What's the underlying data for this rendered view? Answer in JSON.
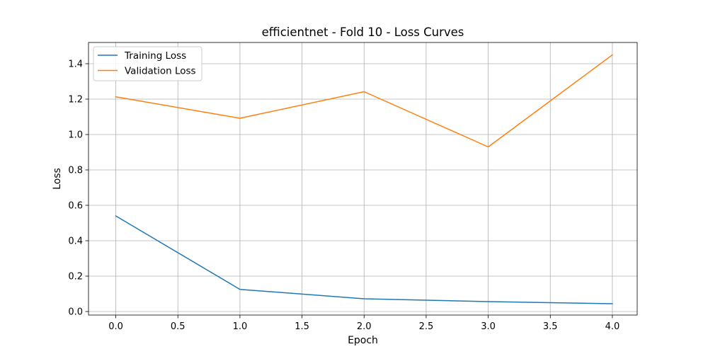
{
  "chart_data": {
    "type": "line",
    "title": "efficientnet - Fold 10 - Loss Curves",
    "xlabel": "Epoch",
    "ylabel": "Loss",
    "xlim": [
      -0.22,
      4.2
    ],
    "ylim": [
      -0.02,
      1.52
    ],
    "x_ticks": [
      0.0,
      0.5,
      1.0,
      1.5,
      2.0,
      2.5,
      3.0,
      3.5,
      4.0
    ],
    "x_tick_labels": [
      "0.0",
      "0.5",
      "1.0",
      "1.5",
      "2.0",
      "2.5",
      "3.0",
      "3.5",
      "4.0"
    ],
    "y_ticks": [
      0.0,
      0.2,
      0.4,
      0.6,
      0.8,
      1.0,
      1.2,
      1.4
    ],
    "y_tick_labels": [
      "0.0",
      "0.2",
      "0.4",
      "0.6",
      "0.8",
      "1.0",
      "1.2",
      "1.4"
    ],
    "grid": true,
    "legend_position": "top-left",
    "x": [
      0,
      1,
      2,
      3,
      4
    ],
    "series": [
      {
        "name": "Training Loss",
        "color": "#1f77b4",
        "values": [
          0.54,
          0.125,
          0.072,
          0.056,
          0.044
        ]
      },
      {
        "name": "Validation Loss",
        "color": "#ff7f0e",
        "values": [
          1.213,
          1.092,
          1.242,
          0.93,
          1.45
        ]
      }
    ]
  }
}
